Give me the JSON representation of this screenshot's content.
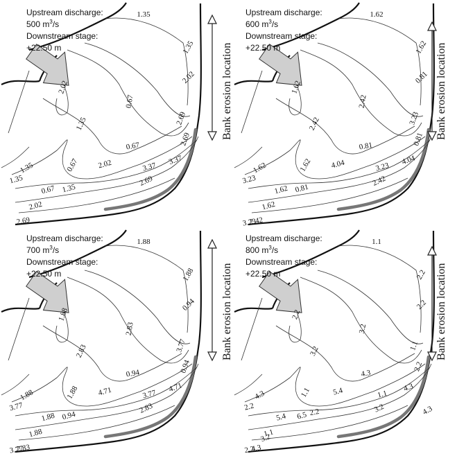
{
  "panels": [
    {
      "discharge_label": "Upstream discharge:",
      "discharge_value": "500 m",
      "discharge_unit_sup": "3",
      "discharge_unit_tail": "/s",
      "stage_label": "Downstream stage:",
      "stage_value": "+22.50 m",
      "bank_label": "Bank erosion location",
      "contour_labels": [
        "1.35",
        "1.35",
        "2.02",
        "0.67",
        "2.02",
        "1.35",
        "0.67",
        "0.67",
        "2.69",
        "2.69",
        "3.37",
        "3.37",
        "2.02",
        "2.69",
        "1.35",
        "0.67",
        "1.35",
        "1.35",
        "2.02",
        "2.69"
      ]
    },
    {
      "discharge_label": "Upstream discharge:",
      "discharge_value": "600 m",
      "discharge_unit_sup": "3",
      "discharge_unit_tail": "/s",
      "stage_label": "Downstream stage:",
      "stage_value": "+22.50 m",
      "bank_label": "Bank erosion location",
      "contour_labels": [
        "1.62",
        "1.62",
        "1.62",
        "2.42",
        "0.81",
        "2.42",
        "1.62",
        "0.81",
        "0.81",
        "3.23",
        "3.23",
        "4.04",
        "4.04",
        "2.42",
        "3.23",
        "1.62",
        "0.81",
        "1.62",
        "1.62",
        "2.42",
        "3.23"
      ]
    },
    {
      "discharge_label": "Upstream discharge:",
      "discharge_value": "700 m",
      "discharge_unit_sup": "3",
      "discharge_unit_tail": "/s",
      "stage_label": "Downstream stage:",
      "stage_value": "+22.50 m",
      "bank_label": "Bank erosion location",
      "contour_labels": [
        "1.88",
        "1.88",
        "1.88",
        "2.83",
        "0.94",
        "2.83",
        "1.88",
        "0.94",
        "0.94",
        "3.77",
        "3.77",
        "4.71",
        "4.71",
        "2.83",
        "3.77",
        "1.88",
        "0.94",
        "1.88",
        "1.88",
        "2.83",
        "3.77"
      ]
    },
    {
      "discharge_label": "Upstream discharge:",
      "discharge_value": "800 m",
      "discharge_unit_sup": "3",
      "discharge_unit_tail": "/s",
      "stage_label": "Downstream stage:",
      "stage_value": "+22.50 m",
      "bank_label": "Bank erosion location",
      "contour_labels": [
        "1.1",
        "2.2",
        "2.2",
        "3.2",
        "2.2",
        "3.2",
        "1.1",
        "4.3",
        "2.2",
        "1.1",
        "1.1",
        "4.3",
        "5.4",
        "3.2",
        "2.2",
        "5.4",
        "6.5",
        "4.3",
        "1.1",
        "4.3",
        "2.2",
        "3.2",
        "2.2",
        "4.3"
      ]
    }
  ]
}
